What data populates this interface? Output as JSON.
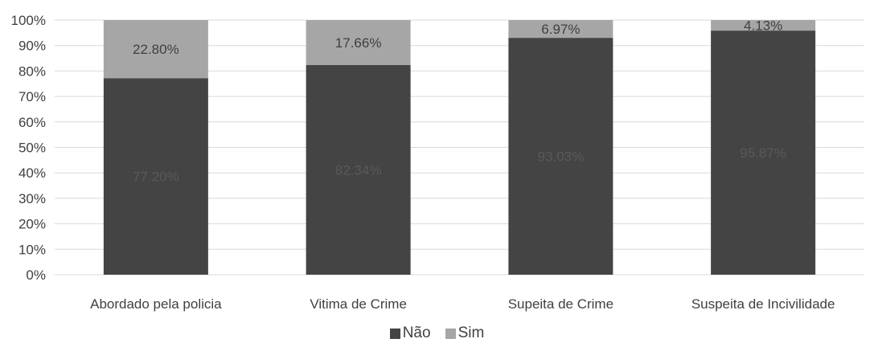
{
  "chart_data": {
    "type": "bar",
    "stacked": true,
    "categories": [
      "Abordado pela policia",
      "Vitima de Crime",
      "Supeita de Crime",
      "Suspeita de Incivilidade"
    ],
    "series": [
      {
        "name": "Não",
        "values": [
          77.2,
          82.34,
          93.03,
          95.87
        ],
        "labels": [
          "77.20%",
          "82.34%",
          "93.03%",
          "95.87%"
        ],
        "color": "#444444",
        "label_color": "#595959"
      },
      {
        "name": "Sim",
        "values": [
          22.8,
          17.66,
          6.97,
          4.13
        ],
        "labels": [
          "22.80%",
          "17.66%",
          "6.97%",
          "4.13%"
        ],
        "color": "#a6a6a6",
        "label_color": "#404040"
      }
    ],
    "yticks": [
      "0%",
      "10%",
      "20%",
      "30%",
      "40%",
      "50%",
      "60%",
      "70%",
      "80%",
      "90%",
      "100%"
    ],
    "ylim": [
      0,
      100
    ],
    "grid": true,
    "legend_position": "bottom"
  }
}
